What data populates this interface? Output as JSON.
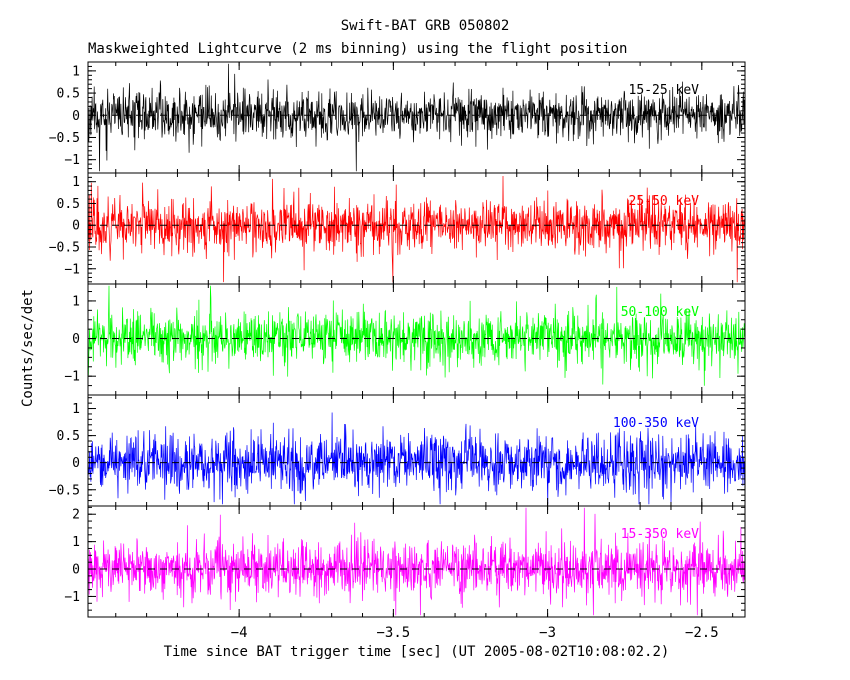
{
  "title": "Swift-BAT GRB 050802",
  "subtitle": "Maskweighted Lightcurve (2 ms binning) using the flight position",
  "xlabel": "Time since BAT trigger time [sec] (UT 2005-08-02T10:08:02.2)",
  "ylabel": "Counts/sec/det",
  "chart_data": {
    "type": "line",
    "title": "Swift-BAT GRB 050802",
    "subtitle": "Maskweighted Lightcurve (2 ms binning) using the flight position",
    "xlabel": "Time since BAT trigger time [sec] (UT 2005-08-02T10:08:02.2)",
    "ylabel": "Counts/sec/det",
    "xlim": [
      -4.49,
      -2.36
    ],
    "x_major_ticks": [
      -4,
      -3.5,
      -3,
      -2.5
    ],
    "x_minor_step": 0.1,
    "bin_width_sec": 0.002,
    "grid": false,
    "legend": "none",
    "zero_line_style": "dashed",
    "background_color": "#ffffff",
    "axis_color": "#000000",
    "description": "Five stacked energy-band panels of mask-weighted count-rate noise (2 ms bins) fluctuating about zero counts/sec/det; no burst feature visible in this pre-trigger window from about -4.5 s to -2.4 s.",
    "points_per_panel": 1600,
    "panels": [
      {
        "band": "15-25 keV",
        "color": "#000000",
        "ylim": [
          -1.3,
          1.2
        ],
        "yticks": [
          1,
          0.5,
          0,
          -0.5,
          -1
        ],
        "y_minor_step": 0.1,
        "mean": 0,
        "noise_sigma": 0.27,
        "seed": 11
      },
      {
        "band": "25-50 keV",
        "color": "#ff0000",
        "ylim": [
          -1.35,
          1.2
        ],
        "yticks": [
          1,
          0.5,
          0,
          -0.5,
          -1
        ],
        "y_minor_step": 0.1,
        "mean": 0,
        "noise_sigma": 0.31,
        "seed": 22
      },
      {
        "band": "50-100 keV",
        "color": "#00ff00",
        "ylim": [
          -1.5,
          1.45
        ],
        "yticks": [
          1,
          0,
          -1
        ],
        "y_minor_step": 0.25,
        "mean": 0,
        "noise_sigma": 0.36,
        "seed": 33
      },
      {
        "band": "100-350 keV",
        "color": "#0000ff",
        "ylim": [
          -0.8,
          1.25
        ],
        "yticks": [
          1,
          0.5,
          0,
          -0.5
        ],
        "y_minor_step": 0.1,
        "mean": 0,
        "noise_sigma": 0.27,
        "seed": 44
      },
      {
        "band": "15-350 keV",
        "color": "#ff00ff",
        "ylim": [
          -1.75,
          2.3
        ],
        "yticks": [
          2,
          1,
          0,
          -1
        ],
        "y_minor_step": 0.25,
        "mean": 0,
        "noise_sigma": 0.5,
        "seed": 55
      }
    ]
  }
}
